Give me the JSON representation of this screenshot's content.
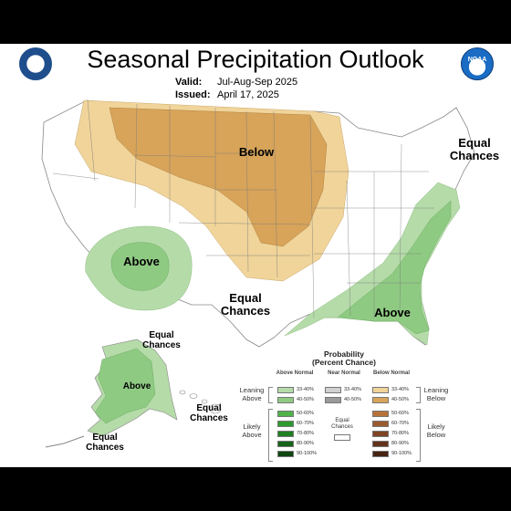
{
  "header": {
    "title": "Seasonal Precipitation Outlook",
    "valid_label": "Valid:",
    "valid_value": "Jul-Aug-Sep 2025",
    "issued_label": "Issued:",
    "issued_value": "April 17, 2025"
  },
  "logos": {
    "left": "doc-seal-icon",
    "right": "noaa-logo-icon",
    "noaa_text": "NOAA"
  },
  "map_labels": {
    "below": "Below",
    "above_sw": "Above",
    "above_se": "Above",
    "equal_chances_central_1": "Equal",
    "equal_chances_central_2": "Chances",
    "equal_chances_ne_1": "Equal",
    "equal_chances_ne_2": "Chances",
    "alaska_equal_1": "Equal",
    "alaska_equal_2": "Chances",
    "alaska_above": "Above",
    "alaska_equal_sw_1": "Equal",
    "alaska_equal_sw_2": "Chances",
    "hawaii_equal_1": "Equal",
    "hawaii_equal_2": "Chances"
  },
  "colors": {
    "below_leaning": "#f0d49a",
    "below_likely": "#d7a45a",
    "above_leaning": "#b5dba9",
    "above_likely": "#8fca83",
    "background": "#ffffff",
    "outer": "#000000"
  },
  "legend": {
    "title_1": "Probability",
    "title_2": "(Percent Chance)",
    "col_above": "Above Normal",
    "col_near": "Near Normal",
    "col_below": "Below Normal",
    "leaning_left": "Leaning Above",
    "leaning_right": "Leaning Below",
    "likely_left": "Likely Above",
    "likely_right": "Likely Below",
    "equal_chances": "Equal Chances",
    "above_rows": [
      {
        "label": "33-40%",
        "color": "#b5dba9"
      },
      {
        "label": "40-50%",
        "color": "#8fca83"
      },
      {
        "label": "50-60%",
        "color": "#4fb34a"
      },
      {
        "label": "60-70%",
        "color": "#2e9a2e"
      },
      {
        "label": "70-80%",
        "color": "#1f7f22"
      },
      {
        "label": "80-90%",
        "color": "#16631a"
      },
      {
        "label": "90-100%",
        "color": "#0f4612"
      }
    ],
    "near_rows": [
      {
        "label": "33-40%",
        "color": "#d0d0d0"
      },
      {
        "label": "40-50%",
        "color": "#9a9a9a"
      }
    ],
    "below_rows": [
      {
        "label": "33-40%",
        "color": "#f0d49a"
      },
      {
        "label": "40-50%",
        "color": "#d7a45a"
      },
      {
        "label": "50-60%",
        "color": "#b8733a"
      },
      {
        "label": "60-70%",
        "color": "#9b5a2e"
      },
      {
        "label": "70-80%",
        "color": "#7e4424"
      },
      {
        "label": "80-90%",
        "color": "#63321b"
      },
      {
        "label": "90-100%",
        "color": "#472312"
      }
    ]
  }
}
